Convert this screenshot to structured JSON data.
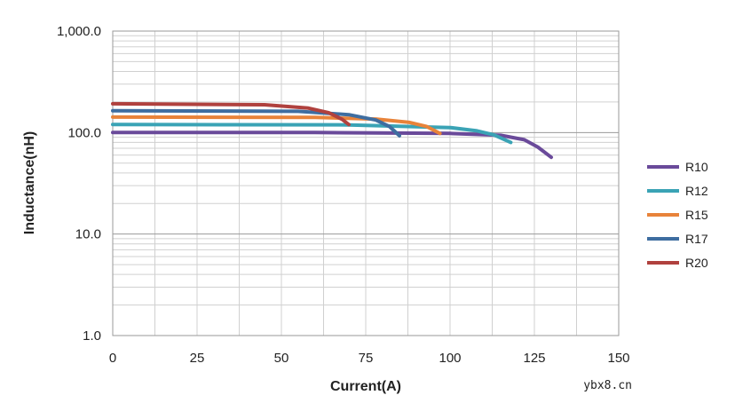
{
  "chart_data": {
    "type": "line",
    "xlabel": "Current(A)",
    "ylabel": "Inductance(nH)",
    "x_scale": "linear",
    "y_scale": "log",
    "xlim": [
      0,
      150
    ],
    "ylim": [
      1,
      1000
    ],
    "x_ticks": [
      "0",
      "25",
      "50",
      "75",
      "100",
      "125",
      "150"
    ],
    "y_ticks": [
      "1.0",
      "10.0",
      "100.0",
      "1,000.0"
    ],
    "grid": true,
    "legend_position": "right",
    "series": [
      {
        "name": "R10",
        "color": "#6a4a9a",
        "points": [
          [
            0,
            100
          ],
          [
            60,
            100
          ],
          [
            100,
            98
          ],
          [
            115,
            94
          ],
          [
            122,
            85
          ],
          [
            126,
            72
          ],
          [
            130,
            57
          ]
        ]
      },
      {
        "name": "R12",
        "color": "#3aa3b5",
        "points": [
          [
            0,
            120
          ],
          [
            70,
            119
          ],
          [
            100,
            112
          ],
          [
            108,
            104
          ],
          [
            113,
            95
          ],
          [
            118,
            80
          ]
        ]
      },
      {
        "name": "R15",
        "color": "#e8833a",
        "points": [
          [
            0,
            142
          ],
          [
            60,
            141
          ],
          [
            78,
            136
          ],
          [
            88,
            126
          ],
          [
            93,
            115
          ],
          [
            97,
            98
          ]
        ]
      },
      {
        "name": "R17",
        "color": "#3e6da0",
        "points": [
          [
            0,
            164
          ],
          [
            55,
            162
          ],
          [
            70,
            150
          ],
          [
            78,
            133
          ],
          [
            82,
            115
          ],
          [
            85,
            93
          ]
        ]
      },
      {
        "name": "R20",
        "color": "#b0413e",
        "points": [
          [
            0,
            192
          ],
          [
            45,
            188
          ],
          [
            58,
            174
          ],
          [
            64,
            157
          ],
          [
            68,
            135
          ],
          [
            70,
            120
          ]
        ]
      }
    ]
  },
  "watermark": "ybx8.cn"
}
